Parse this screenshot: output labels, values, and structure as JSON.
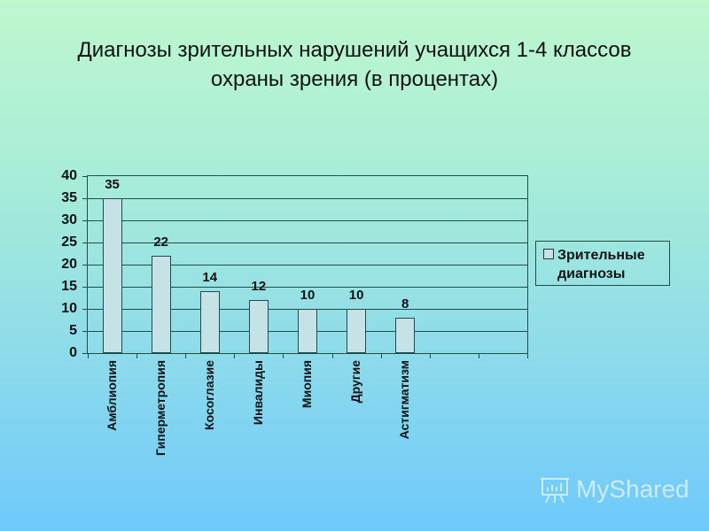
{
  "title": {
    "line1": "Диагнозы зрительных нарушений учащихся 1-4 классов",
    "line2": "охраны зрения (в процентах)"
  },
  "legend": {
    "line1": "Зрительные",
    "line2": "диагнозы"
  },
  "watermark": "MyShared",
  "colors": {
    "bar_fill": "#c5e2e6",
    "bar_border": "#1f4c4c",
    "bg_top": "#bff7cf",
    "bg_bottom": "#6ec9fb"
  },
  "chart_data": {
    "type": "bar",
    "title": "Диагнозы зрительных нарушений учащихся 1-4 классов охраны зрения (в процентах)",
    "categories": [
      "Амблиопия",
      "Гиперметропия",
      "Косоглазие",
      "Инвалиды",
      "Миопия",
      "Другие",
      "Астигматизм",
      "",
      ""
    ],
    "series": [
      {
        "name": "Зрительные диагнозы",
        "values": [
          35,
          22,
          14,
          12,
          10,
          10,
          8,
          null,
          null
        ]
      }
    ],
    "data_labels": [
      "35",
      "22",
      "14",
      "12",
      "10",
      "10",
      "8"
    ],
    "xlabel": "",
    "ylabel": "",
    "ylim": [
      0,
      40
    ],
    "yticks": [
      "0",
      "5",
      "10",
      "15",
      "20",
      "25",
      "30",
      "35",
      "40"
    ],
    "grid": true,
    "legend_position": "right"
  }
}
